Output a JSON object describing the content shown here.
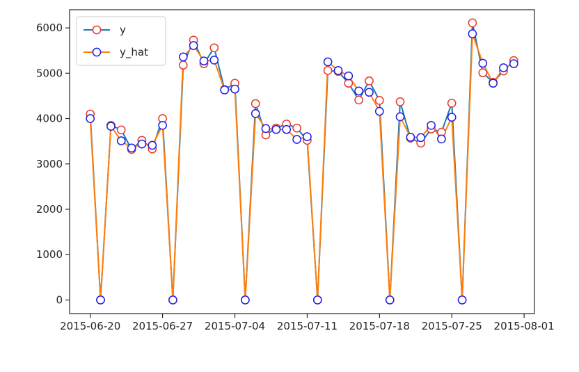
{
  "chart_data": {
    "type": "line",
    "title": "",
    "xlabel": "",
    "ylabel": "",
    "x_ticks": [
      "2015-06-20",
      "2015-06-27",
      "2015-07-04",
      "2015-07-11",
      "2015-07-18",
      "2015-07-25",
      "2015-08-01"
    ],
    "y_ticks": [
      "0",
      "1000",
      "2000",
      "3000",
      "4000",
      "5000",
      "6000"
    ],
    "xlim": [
      "2015-06-18",
      "2015-08-02"
    ],
    "ylim": [
      -300,
      6400
    ],
    "grid": false,
    "legend_position": "top-left",
    "x": [
      "2015-06-20",
      "2015-06-21",
      "2015-06-22",
      "2015-06-23",
      "2015-06-24",
      "2015-06-25",
      "2015-06-26",
      "2015-06-27",
      "2015-06-28",
      "2015-06-29",
      "2015-06-30",
      "2015-07-01",
      "2015-07-02",
      "2015-07-03",
      "2015-07-04",
      "2015-07-05",
      "2015-07-06",
      "2015-07-07",
      "2015-07-08",
      "2015-07-09",
      "2015-07-10",
      "2015-07-11",
      "2015-07-12",
      "2015-07-13",
      "2015-07-14",
      "2015-07-15",
      "2015-07-16",
      "2015-07-17",
      "2015-07-18",
      "2015-07-19",
      "2015-07-20",
      "2015-07-21",
      "2015-07-22",
      "2015-07-23",
      "2015-07-24",
      "2015-07-25",
      "2015-07-26",
      "2015-07-27",
      "2015-07-28",
      "2015-07-29",
      "2015-07-30",
      "2015-07-31"
    ],
    "series": [
      {
        "name": "y",
        "line_color": "#1f77b4",
        "marker_edge": "#e8392e",
        "values": [
          4100,
          0,
          3850,
          3750,
          3320,
          3520,
          3330,
          4000,
          0,
          5180,
          5730,
          5210,
          5560,
          4640,
          4780,
          0,
          4330,
          3640,
          3790,
          3880,
          3790,
          3520,
          0,
          5060,
          5040,
          4780,
          4410,
          4830,
          4400,
          0,
          4370,
          3570,
          3460,
          3770,
          3700,
          4340,
          0,
          6110,
          5010,
          4800,
          5050,
          5280
        ]
      },
      {
        "name": "y_hat",
        "line_color": "#ff7f0e",
        "marker_edge": "#1f1fe6",
        "values": [
          4000,
          0,
          3830,
          3510,
          3350,
          3440,
          3410,
          3850,
          0,
          5360,
          5610,
          5270,
          5290,
          4630,
          4650,
          0,
          4110,
          3780,
          3760,
          3760,
          3540,
          3600,
          0,
          5250,
          5060,
          4940,
          4610,
          4580,
          4160,
          0,
          4040,
          3590,
          3580,
          3850,
          3550,
          4030,
          0,
          5870,
          5220,
          4780,
          5120,
          5210
        ]
      }
    ]
  }
}
